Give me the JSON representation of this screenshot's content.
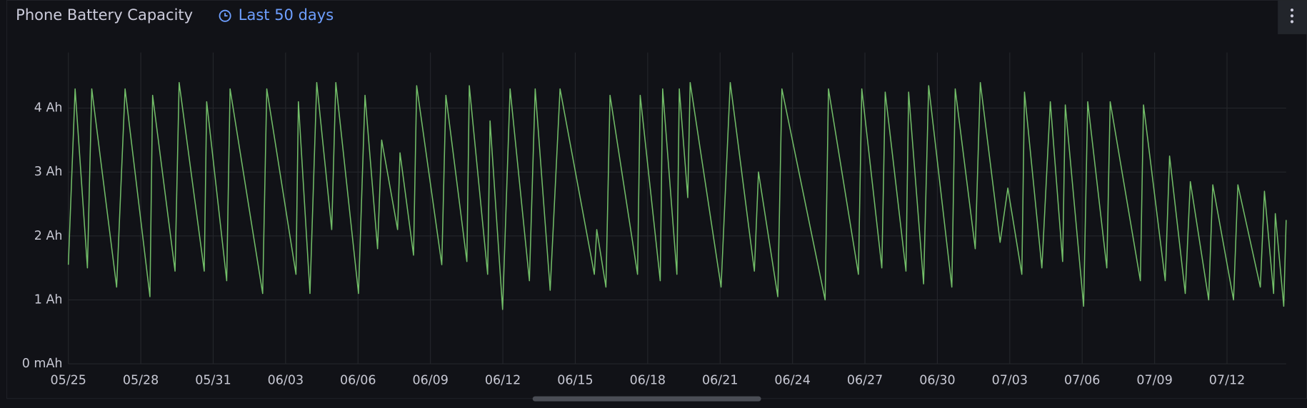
{
  "chart_data": {
    "type": "line",
    "title": "Phone Battery Capacity",
    "subtitle": "Last 50 days",
    "color": "#73bf69",
    "grid": true,
    "xlim": [
      0,
      50.45
    ],
    "ylim": [
      0,
      4.87
    ],
    "xticks": [
      {
        "value": 0,
        "label": "05/25"
      },
      {
        "value": 3,
        "label": "05/28"
      },
      {
        "value": 6,
        "label": "05/31"
      },
      {
        "value": 9,
        "label": "06/03"
      },
      {
        "value": 12,
        "label": "06/06"
      },
      {
        "value": 15,
        "label": "06/09"
      },
      {
        "value": 18,
        "label": "06/12"
      },
      {
        "value": 21,
        "label": "06/15"
      },
      {
        "value": 24,
        "label": "06/18"
      },
      {
        "value": 27,
        "label": "06/21"
      },
      {
        "value": 30,
        "label": "06/24"
      },
      {
        "value": 33,
        "label": "06/27"
      },
      {
        "value": 36,
        "label": "06/30"
      },
      {
        "value": 39,
        "label": "07/03"
      },
      {
        "value": 42,
        "label": "07/06"
      },
      {
        "value": 45,
        "label": "07/09"
      },
      {
        "value": 48,
        "label": "07/12"
      }
    ],
    "yticks": [
      {
        "value": 0,
        "label": "0 mAh"
      },
      {
        "value": 1,
        "label": "1 Ah"
      },
      {
        "value": 2,
        "label": "2 Ah"
      },
      {
        "value": 3,
        "label": "3 Ah"
      },
      {
        "value": 4,
        "label": "4 Ah"
      }
    ],
    "x": [
      0,
      0.28,
      0.79,
      0.97,
      2.0,
      2.35,
      3.38,
      3.49,
      4.42,
      4.59,
      5.63,
      5.73,
      6.56,
      6.7,
      8.05,
      8.22,
      9.43,
      9.53,
      10.01,
      10.29,
      10.91,
      11.08,
      12.02,
      12.29,
      12.81,
      12.98,
      13.64,
      13.74,
      14.3,
      14.43,
      15.47,
      15.64,
      16.51,
      16.61,
      17.37,
      17.47,
      17.99,
      18.3,
      19.1,
      19.34,
      19.96,
      20.37,
      21.79,
      21.89,
      22.27,
      22.44,
      23.58,
      23.69,
      24.52,
      24.62,
      25.21,
      25.31,
      25.66,
      25.76,
      27.04,
      27.42,
      28.42,
      28.59,
      29.39,
      29.56,
      31.35,
      31.49,
      32.73,
      32.87,
      33.7,
      33.84,
      34.7,
      34.81,
      35.43,
      35.64,
      36.6,
      36.74,
      37.57,
      37.78,
      38.6,
      38.92,
      39.5,
      39.61,
      40.33,
      40.68,
      41.19,
      41.3,
      42.06,
      42.23,
      43.02,
      43.16,
      44.41,
      44.54,
      45.44,
      45.62,
      46.27,
      46.48,
      47.24,
      47.41,
      48.27,
      48.45,
      49.38,
      49.55,
      49.93,
      50.0,
      50.35,
      50.45
    ],
    "values": [
      1.55,
      4.3,
      1.5,
      4.3,
      1.2,
      4.3,
      1.05,
      4.2,
      1.45,
      4.4,
      1.45,
      4.1,
      1.3,
      4.3,
      1.1,
      4.3,
      1.4,
      4.1,
      1.1,
      4.4,
      2.1,
      4.4,
      1.1,
      4.2,
      1.8,
      3.5,
      2.1,
      3.3,
      1.7,
      4.35,
      1.55,
      4.2,
      1.6,
      4.35,
      1.4,
      3.8,
      0.85,
      4.3,
      1.3,
      4.3,
      1.15,
      4.3,
      1.4,
      2.1,
      1.2,
      4.2,
      1.4,
      4.2,
      1.3,
      4.3,
      1.4,
      4.3,
      2.6,
      4.4,
      1.2,
      4.4,
      1.45,
      3.0,
      1.05,
      4.3,
      1.0,
      4.3,
      1.4,
      4.3,
      1.5,
      4.25,
      1.45,
      4.25,
      1.25,
      4.35,
      1.2,
      4.3,
      1.8,
      4.4,
      1.9,
      2.75,
      1.4,
      4.25,
      1.5,
      4.1,
      1.6,
      4.05,
      0.9,
      4.1,
      1.5,
      4.1,
      1.3,
      4.05,
      1.3,
      3.25,
      1.1,
      2.85,
      1.0,
      2.8,
      1.0,
      2.8,
      1.2,
      2.7,
      1.1,
      2.35,
      0.9,
      2.25
    ]
  }
}
